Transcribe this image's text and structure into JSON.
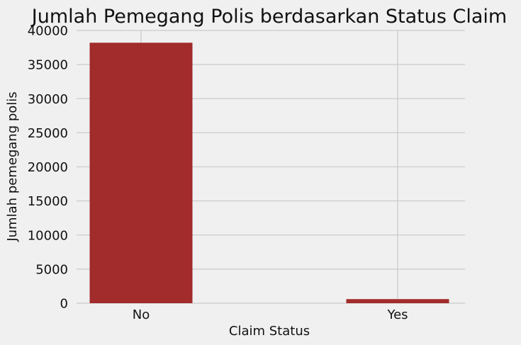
{
  "chart_data": {
    "type": "bar",
    "title": "Jumlah Pemegang Polis berdasarkan Status Claim",
    "xlabel": "Claim Status",
    "ylabel": "Jumlah pemegang polis",
    "categories": [
      "No",
      "Yes"
    ],
    "values": [
      38200,
      600
    ],
    "ylim": [
      0,
      40000
    ],
    "yticks": [
      0,
      5000,
      10000,
      15000,
      20000,
      25000,
      30000,
      35000,
      40000
    ],
    "ytick_labels": [
      "0",
      "5000",
      "10000",
      "15000",
      "20000",
      "25000",
      "30000",
      "35000",
      "40000"
    ],
    "grid": true,
    "bar_color": "#a22b2b",
    "background_color": "#f0f0f0",
    "grid_color": "#cbcbcb"
  }
}
